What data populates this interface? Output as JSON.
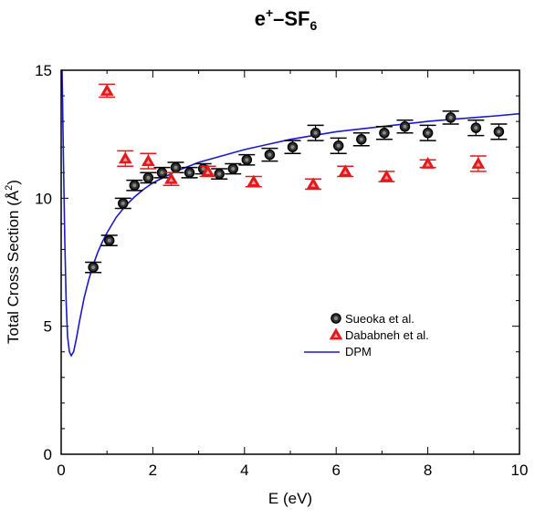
{
  "chart_data": {
    "type": "scatter",
    "title": {
      "base": "e",
      "sup": "+",
      "mid": "–SF",
      "sub": "6"
    },
    "xlabel": "E (eV)",
    "ylabel": {
      "main": "Total Cross Section (Å",
      "sup": "2",
      "end": ")"
    },
    "xlim": [
      0,
      10
    ],
    "ylim": [
      0,
      15
    ],
    "xticks": [
      0,
      2,
      4,
      6,
      8,
      10
    ],
    "yticks": [
      0,
      5,
      10,
      15
    ],
    "grid": false,
    "legend_position": "center-right",
    "series": [
      {
        "name": "Sueoka et al.",
        "marker": "circle",
        "color": "#000000",
        "points": [
          {
            "x": 0.7,
            "y": 7.3,
            "err": 0.2
          },
          {
            "x": 1.05,
            "y": 8.35,
            "err": 0.2
          },
          {
            "x": 1.35,
            "y": 9.8,
            "err": 0.2
          },
          {
            "x": 1.6,
            "y": 10.5,
            "err": 0.2
          },
          {
            "x": 1.9,
            "y": 10.8,
            "err": 0.2
          },
          {
            "x": 2.2,
            "y": 11.0,
            "err": 0.2
          },
          {
            "x": 2.5,
            "y": 11.2,
            "err": 0.2
          },
          {
            "x": 2.8,
            "y": 11.0,
            "err": 0.2
          },
          {
            "x": 3.1,
            "y": 11.15,
            "err": 0.2
          },
          {
            "x": 3.45,
            "y": 10.95,
            "err": 0.2
          },
          {
            "x": 3.75,
            "y": 11.15,
            "err": 0.2
          },
          {
            "x": 4.05,
            "y": 11.5,
            "err": 0.2
          },
          {
            "x": 4.55,
            "y": 11.7,
            "err": 0.25
          },
          {
            "x": 5.05,
            "y": 12.0,
            "err": 0.25
          },
          {
            "x": 5.55,
            "y": 12.55,
            "err": 0.3
          },
          {
            "x": 6.05,
            "y": 12.05,
            "err": 0.3
          },
          {
            "x": 6.55,
            "y": 12.3,
            "err": 0.25
          },
          {
            "x": 7.05,
            "y": 12.55,
            "err": 0.25
          },
          {
            "x": 7.5,
            "y": 12.8,
            "err": 0.25
          },
          {
            "x": 8.0,
            "y": 12.55,
            "err": 0.3
          },
          {
            "x": 8.5,
            "y": 13.15,
            "err": 0.25
          },
          {
            "x": 9.05,
            "y": 12.75,
            "err": 0.3
          },
          {
            "x": 9.55,
            "y": 12.6,
            "err": 0.3
          }
        ]
      },
      {
        "name": "Dababneh et al.",
        "marker": "triangle",
        "color": "#e31a1c",
        "points": [
          {
            "x": 1.0,
            "y": 14.2,
            "err": 0.25
          },
          {
            "x": 1.4,
            "y": 11.55,
            "err": 0.3
          },
          {
            "x": 1.9,
            "y": 11.45,
            "err": 0.3
          },
          {
            "x": 2.4,
            "y": 10.75,
            "err": 0.25
          },
          {
            "x": 3.2,
            "y": 11.05,
            "err": 0.2
          },
          {
            "x": 4.2,
            "y": 10.65,
            "err": 0.2
          },
          {
            "x": 5.5,
            "y": 10.55,
            "err": 0.2
          },
          {
            "x": 6.2,
            "y": 11.05,
            "err": 0.2
          },
          {
            "x": 7.1,
            "y": 10.85,
            "err": 0.2
          },
          {
            "x": 8.0,
            "y": 11.35,
            "err": 0.15
          },
          {
            "x": 9.1,
            "y": 11.35,
            "err": 0.3
          }
        ]
      },
      {
        "name": "DPM",
        "marker": "line",
        "color": "#1a1acd",
        "points": [
          {
            "x": 0.02,
            "y": 15.0
          },
          {
            "x": 0.05,
            "y": 11.5
          },
          {
            "x": 0.08,
            "y": 8.3
          },
          {
            "x": 0.11,
            "y": 5.9
          },
          {
            "x": 0.14,
            "y": 4.6
          },
          {
            "x": 0.18,
            "y": 4.0
          },
          {
            "x": 0.22,
            "y": 3.85
          },
          {
            "x": 0.27,
            "y": 4.0
          },
          {
            "x": 0.33,
            "y": 4.5
          },
          {
            "x": 0.4,
            "y": 5.2
          },
          {
            "x": 0.5,
            "y": 6.1
          },
          {
            "x": 0.6,
            "y": 6.8
          },
          {
            "x": 0.7,
            "y": 7.4
          },
          {
            "x": 0.8,
            "y": 7.9
          },
          {
            "x": 0.9,
            "y": 8.3
          },
          {
            "x": 1.0,
            "y": 8.65
          },
          {
            "x": 1.2,
            "y": 9.25
          },
          {
            "x": 1.4,
            "y": 9.7
          },
          {
            "x": 1.6,
            "y": 10.05
          },
          {
            "x": 1.8,
            "y": 10.35
          },
          {
            "x": 2.0,
            "y": 10.6
          },
          {
            "x": 2.5,
            "y": 11.05
          },
          {
            "x": 3.0,
            "y": 11.4
          },
          {
            "x": 3.5,
            "y": 11.65
          },
          {
            "x": 4.0,
            "y": 11.9
          },
          {
            "x": 4.5,
            "y": 12.1
          },
          {
            "x": 5.0,
            "y": 12.3
          },
          {
            "x": 5.5,
            "y": 12.45
          },
          {
            "x": 6.0,
            "y": 12.6
          },
          {
            "x": 6.5,
            "y": 12.7
          },
          {
            "x": 7.0,
            "y": 12.8
          },
          {
            "x": 7.5,
            "y": 12.9
          },
          {
            "x": 8.0,
            "y": 13.0
          },
          {
            "x": 8.5,
            "y": 13.08
          },
          {
            "x": 9.0,
            "y": 13.15
          },
          {
            "x": 9.5,
            "y": 13.22
          },
          {
            "x": 10.0,
            "y": 13.3
          }
        ]
      }
    ]
  }
}
